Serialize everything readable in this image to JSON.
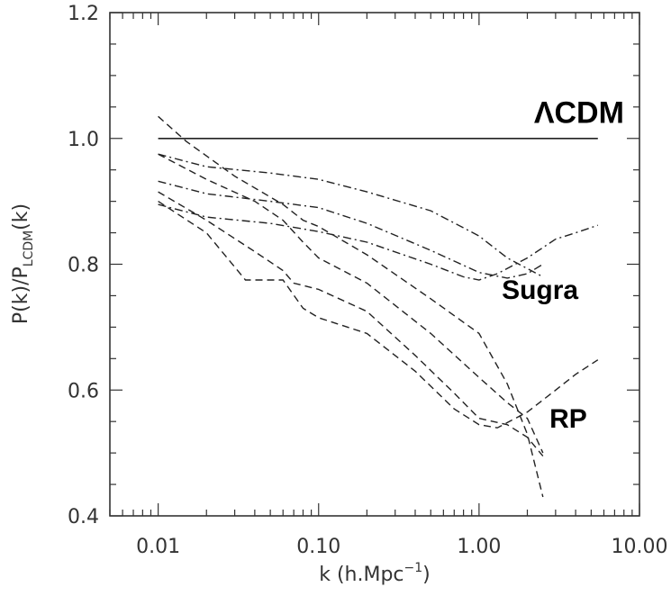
{
  "chart_data": {
    "type": "line",
    "xscale": "log",
    "xlim": [
      0.005,
      10
    ],
    "ylim": [
      0.4,
      1.2
    ],
    "xticks": [
      0.01,
      0.1,
      1,
      10
    ],
    "xtick_labels": [
      "0.01",
      "0.10",
      "1.00",
      "10.00"
    ],
    "yticks": [
      0.4,
      0.6,
      0.8,
      1.0,
      1.2
    ],
    "ytick_labels": [
      "0.4",
      "0.6",
      "0.8",
      "1.0",
      "1.2"
    ],
    "xlabel": "k  (h.Mpc",
    "xlabel_sup": "−1",
    "xlabel_close": ")",
    "ylabel_main": "P(k)/P",
    "ylabel_sub": "LCDM",
    "ylabel_end": "(k)",
    "grid": false,
    "annotations": [
      {
        "text": "ΛCDM",
        "x": 4.2,
        "y": 1.025
      },
      {
        "text": "Sugra",
        "x": 2.4,
        "y": 0.745
      },
      {
        "text": "RP",
        "x": 3.6,
        "y": 0.54
      }
    ],
    "series": [
      {
        "style": "solid",
        "x": [
          0.01,
          5.5
        ],
        "y": [
          1.0,
          1.0
        ]
      },
      {
        "style": "dashdot",
        "x": [
          0.01,
          0.02,
          0.05,
          0.1,
          0.2,
          0.5,
          1.0,
          1.5,
          2.5
        ],
        "y": [
          0.975,
          0.955,
          0.945,
          0.935,
          0.915,
          0.885,
          0.845,
          0.81,
          0.78
        ]
      },
      {
        "style": "dashdot",
        "x": [
          0.01,
          0.02,
          0.05,
          0.1,
          0.2,
          0.5,
          1.0,
          1.5,
          2.0,
          2.5
        ],
        "y": [
          0.932,
          0.912,
          0.9,
          0.89,
          0.865,
          0.822,
          0.787,
          0.778,
          0.785,
          0.8
        ]
      },
      {
        "style": "dashdot",
        "x": [
          0.01,
          0.02,
          0.05,
          0.1,
          0.2,
          0.5,
          0.8,
          1.0,
          1.3,
          2.0,
          3.0,
          4.0,
          5.5
        ],
        "y": [
          0.895,
          0.875,
          0.865,
          0.852,
          0.835,
          0.8,
          0.78,
          0.775,
          0.785,
          0.81,
          0.84,
          0.85,
          0.862
        ]
      },
      {
        "style": "dashed",
        "x": [
          0.01,
          0.015,
          0.03,
          0.06,
          0.08,
          0.1,
          0.2,
          0.5,
          1.0,
          1.5,
          2.0,
          2.5
        ],
        "y": [
          1.035,
          0.995,
          0.94,
          0.895,
          0.87,
          0.86,
          0.815,
          0.745,
          0.69,
          0.61,
          0.53,
          0.43
        ]
      },
      {
        "style": "dashed",
        "x": [
          0.01,
          0.02,
          0.04,
          0.06,
          0.08,
          0.1,
          0.2,
          0.5,
          1.0,
          1.5,
          2.0,
          2.5
        ],
        "y": [
          0.975,
          0.935,
          0.9,
          0.87,
          0.835,
          0.81,
          0.77,
          0.69,
          0.62,
          0.58,
          0.555,
          0.5
        ]
      },
      {
        "style": "dashed",
        "x": [
          0.01,
          0.02,
          0.04,
          0.06,
          0.07,
          0.1,
          0.2,
          0.4,
          0.7,
          1.0,
          1.5,
          2.0,
          2.5
        ],
        "y": [
          0.915,
          0.87,
          0.82,
          0.79,
          0.77,
          0.76,
          0.725,
          0.655,
          0.595,
          0.555,
          0.545,
          0.525,
          0.495
        ]
      },
      {
        "style": "dashed",
        "x": [
          0.01,
          0.02,
          0.035,
          0.06,
          0.08,
          0.1,
          0.2,
          0.4,
          0.7,
          1.0,
          1.3,
          2.0,
          3.0,
          4.0,
          5.5
        ],
        "y": [
          0.9,
          0.85,
          0.775,
          0.775,
          0.73,
          0.715,
          0.69,
          0.63,
          0.57,
          0.545,
          0.54,
          0.565,
          0.6,
          0.625,
          0.648
        ]
      }
    ]
  }
}
